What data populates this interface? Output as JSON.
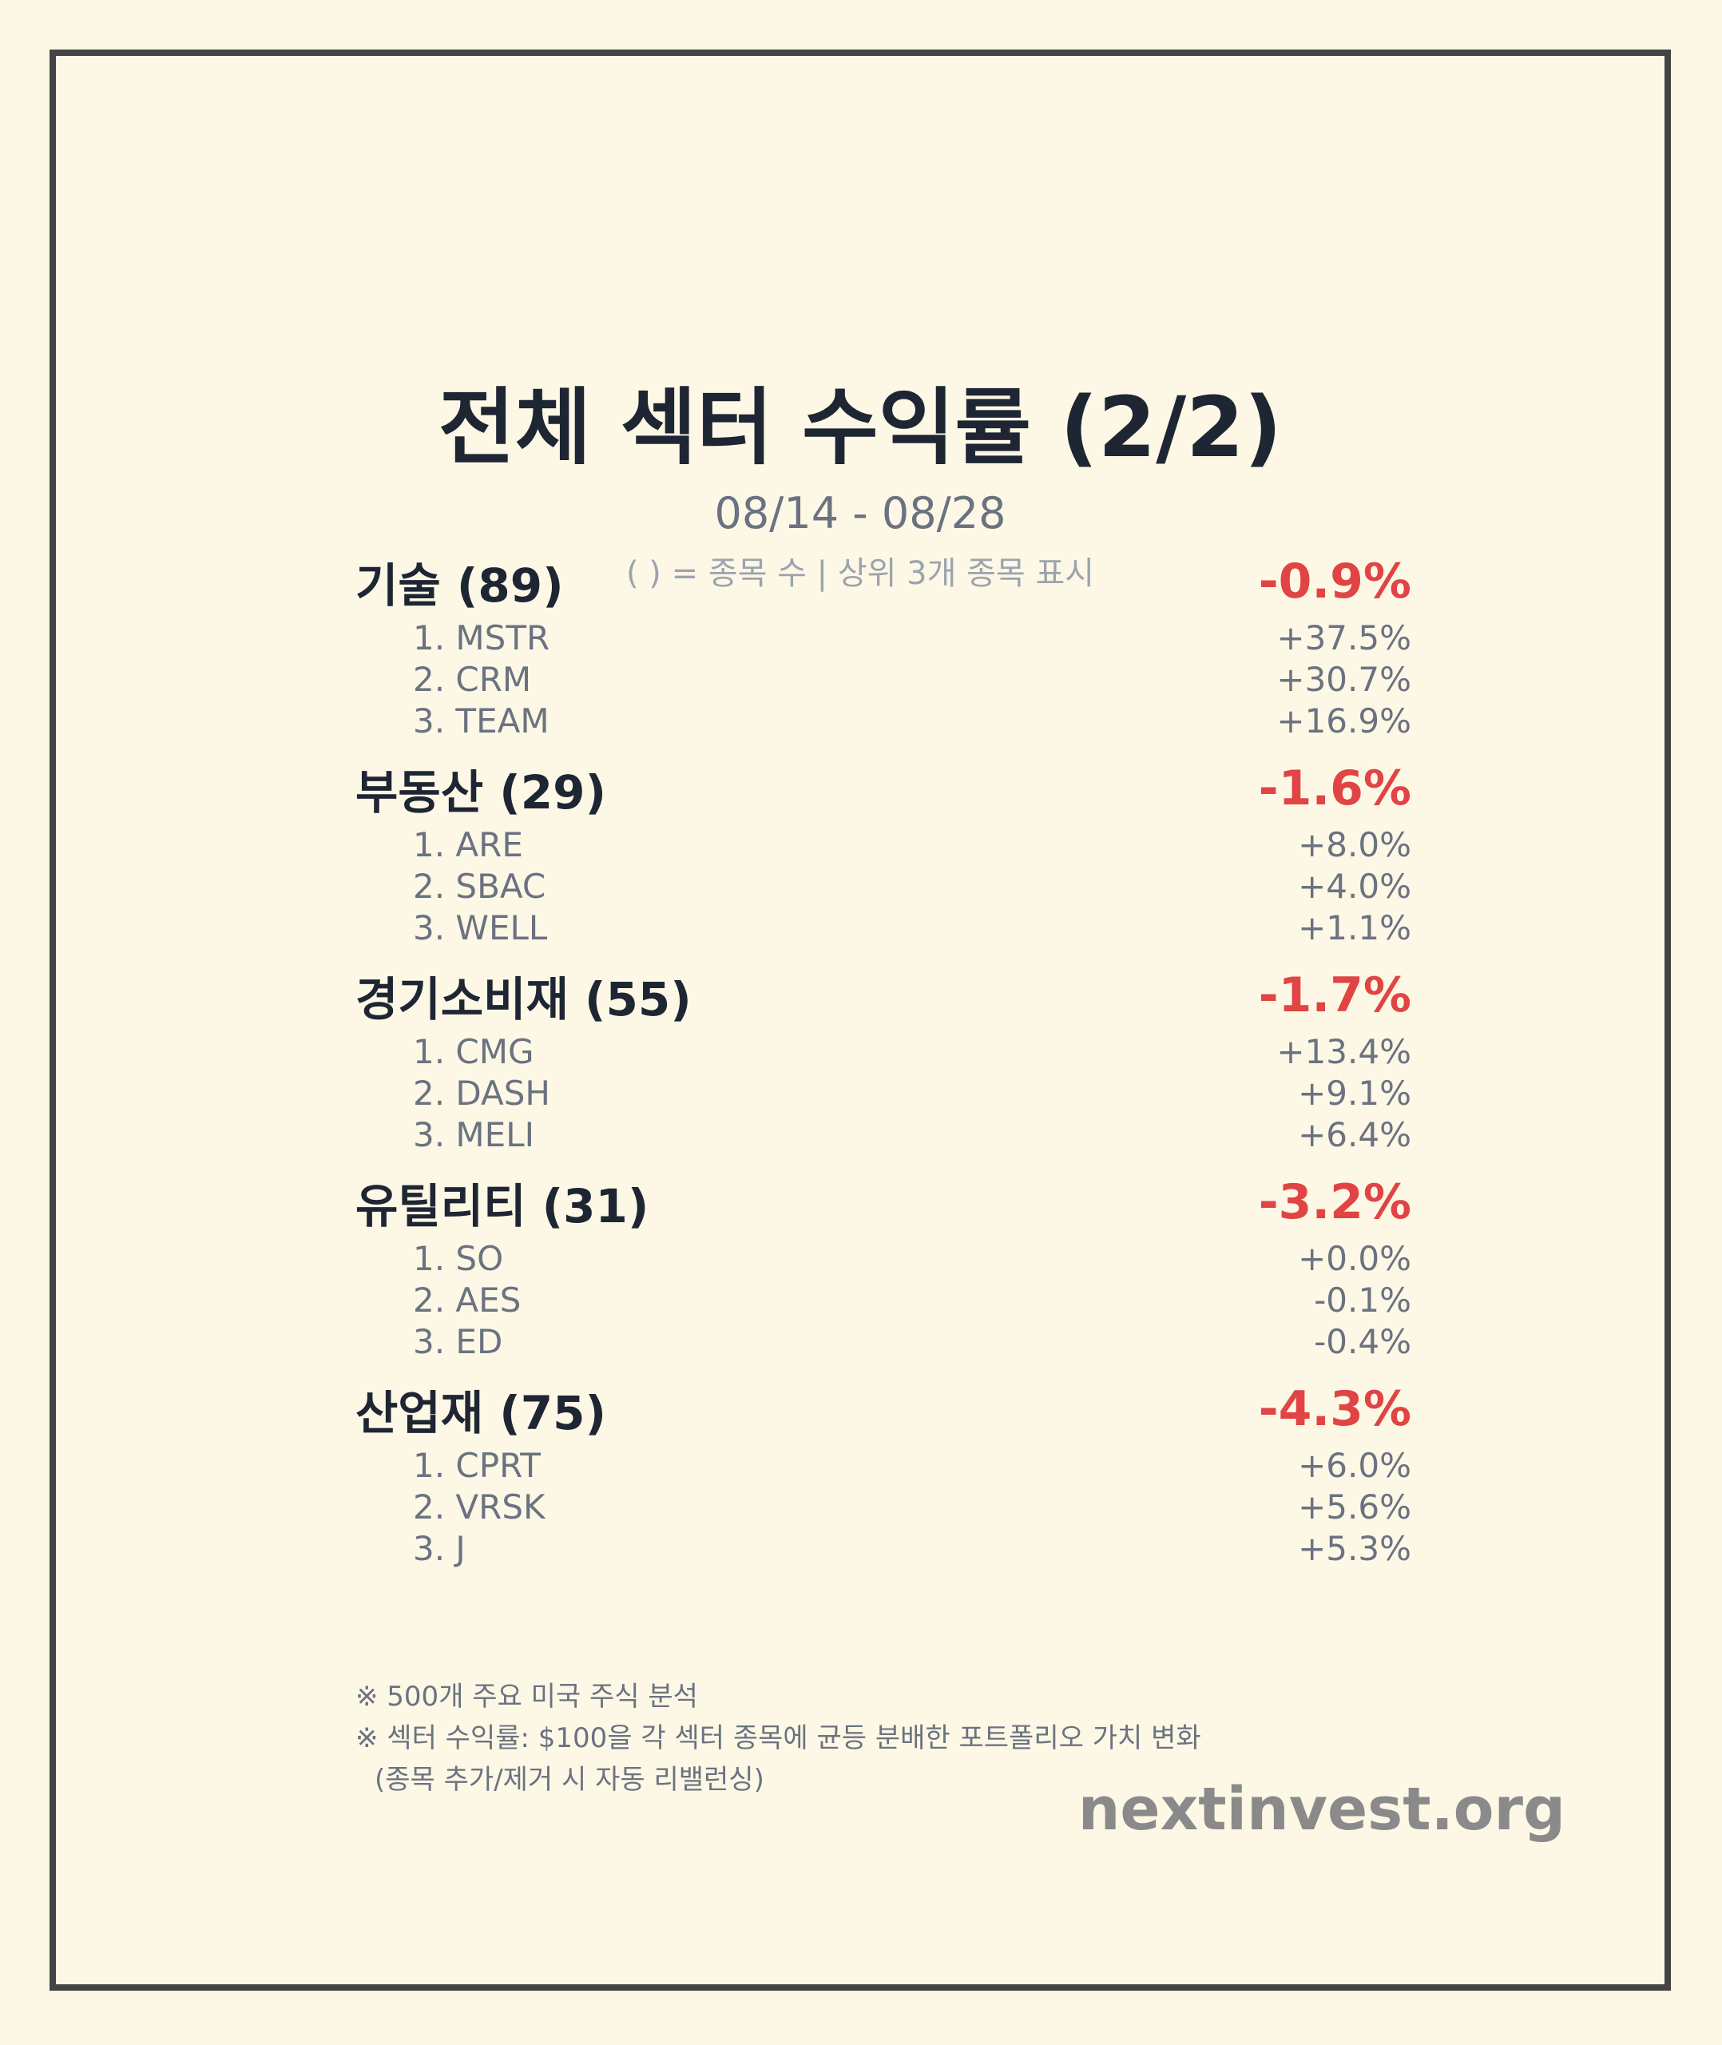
{
  "title": "전체 섹터 수익률 (2/2)",
  "date_range": "08/14 - 08/28",
  "legend_note": "( ) = 종목 수 | 상위 3개 종목 표시",
  "sectors": [
    {
      "name": "기술 (89)",
      "return": "-0.9%",
      "stocks": [
        {
          "label": "1. MSTR",
          "return": "+37.5%"
        },
        {
          "label": "2. CRM",
          "return": "+30.7%"
        },
        {
          "label": "3. TEAM",
          "return": "+16.9%"
        }
      ]
    },
    {
      "name": "부동산 (29)",
      "return": "-1.6%",
      "stocks": [
        {
          "label": "1. ARE",
          "return": "+8.0%"
        },
        {
          "label": "2. SBAC",
          "return": "+4.0%"
        },
        {
          "label": "3. WELL",
          "return": "+1.1%"
        }
      ]
    },
    {
      "name": "경기소비재 (55)",
      "return": "-1.7%",
      "stocks": [
        {
          "label": "1. CMG",
          "return": "+13.4%"
        },
        {
          "label": "2. DASH",
          "return": "+9.1%"
        },
        {
          "label": "3. MELI",
          "return": "+6.4%"
        }
      ]
    },
    {
      "name": "유틸리티 (31)",
      "return": "-3.2%",
      "stocks": [
        {
          "label": "1. SO",
          "return": "+0.0%"
        },
        {
          "label": "2. AES",
          "return": "-0.1%"
        },
        {
          "label": "3. ED",
          "return": "-0.4%"
        }
      ]
    },
    {
      "name": "산업재 (75)",
      "return": "-4.3%",
      "stocks": [
        {
          "label": "1. CPRT",
          "return": "+6.0%"
        },
        {
          "label": "2. VRSK",
          "return": "+5.6%"
        },
        {
          "label": "3. J",
          "return": "+5.3%"
        }
      ]
    }
  ],
  "footnotes": {
    "line1": "※ 500개 주요 미국 주식 분석",
    "line2": "※ 섹터 수익률: $100을 각 섹터 종목에 균등 분배한 포트폴리오 가치 변화",
    "line3": "(종목 추가/제거 시 자동 리밸런싱)"
  },
  "brand": "nextinvest.org",
  "colors": {
    "background": "#fdf8e6",
    "frame": "#444444",
    "negative": "#e04444",
    "heading": "#1e2533",
    "muted": "#6b7280"
  }
}
